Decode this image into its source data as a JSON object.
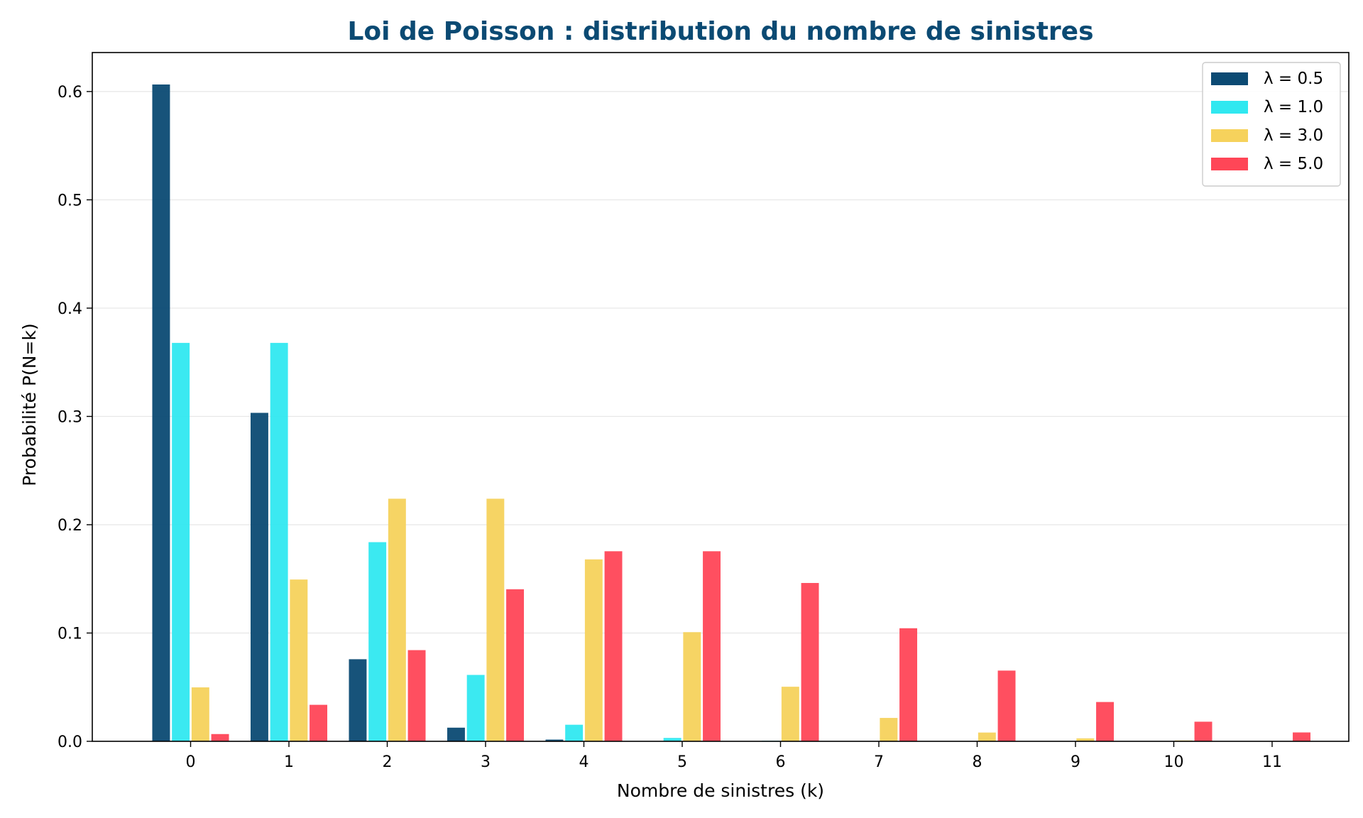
{
  "chart_data": {
    "type": "bar",
    "title": "Loi de Poisson : distribution du nombre de sinistres",
    "xlabel": "Nombre de sinistres (k)",
    "ylabel": "Probabilité P(N=k)",
    "categories": [
      "0",
      "1",
      "2",
      "3",
      "4",
      "5",
      "6",
      "7",
      "8",
      "9",
      "10",
      "11"
    ],
    "ylim": [
      0,
      0.636
    ],
    "yticks": [
      0.0,
      0.1,
      0.2,
      0.3,
      0.4,
      0.5,
      0.6
    ],
    "ytick_labels": [
      "0.0",
      "0.1",
      "0.2",
      "0.3",
      "0.4",
      "0.5",
      "0.6"
    ],
    "grid": "horizontal",
    "legend_position": "top-right",
    "series": [
      {
        "name": "λ = 0.5",
        "color": "#0b4a73",
        "values": [
          0.6065,
          0.3033,
          0.0758,
          0.0126,
          0.0016,
          0.0002,
          0.0,
          0.0,
          0.0,
          0.0,
          0.0,
          0.0
        ]
      },
      {
        "name": "λ = 1.0",
        "color": "#30e8f0",
        "values": [
          0.3679,
          0.3679,
          0.1839,
          0.0613,
          0.0153,
          0.0031,
          0.0005,
          0.0001,
          0.0,
          0.0,
          0.0,
          0.0
        ]
      },
      {
        "name": "λ = 3.0",
        "color": "#f6d25c",
        "values": [
          0.0498,
          0.1494,
          0.224,
          0.224,
          0.168,
          0.1008,
          0.0504,
          0.0216,
          0.0081,
          0.0027,
          0.0008,
          0.0002
        ]
      },
      {
        "name": "λ = 5.0",
        "color": "#ff4657",
        "values": [
          0.0067,
          0.0337,
          0.0842,
          0.1404,
          0.1755,
          0.1755,
          0.1462,
          0.1044,
          0.0653,
          0.0363,
          0.0181,
          0.0082
        ]
      }
    ],
    "colors": {
      "title": "#0b4a73",
      "grid": "#e6e6e6",
      "axis": "#000000"
    }
  }
}
